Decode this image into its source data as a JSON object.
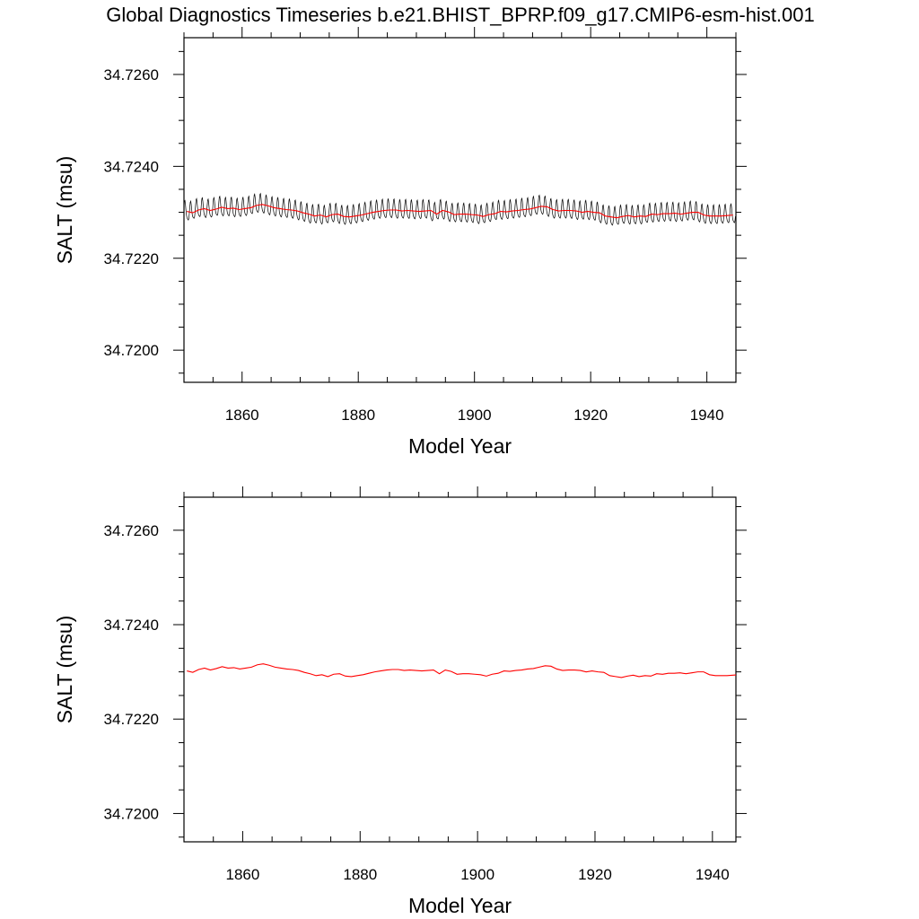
{
  "title": "Global Diagnostics Timeseries b.e21.BHIST_BPRP.f09_g17.CMIP6-esm-hist.001",
  "colors": {
    "monthly": "#000000",
    "annual": "#ff0000",
    "axes": "#000000"
  },
  "chart_data": [
    {
      "type": "line",
      "xlabel": "Model Year",
      "ylabel": "SALT (msu)",
      "xlim": [
        1850,
        1945
      ],
      "ylim": [
        34.7193,
        34.7268
      ],
      "xticks": [
        "1860",
        "1880",
        "1900",
        "1920",
        "1940"
      ],
      "yticks": [
        "34.7200",
        "34.7220",
        "34.7240",
        "34.7260"
      ],
      "grid": false,
      "series": [
        {
          "kind": "monthly",
          "x_start": 1850,
          "x_end": 1945,
          "seasonal_amplitude": 0.0002,
          "values": [
            34.72302,
            34.72299,
            34.72305,
            34.72308,
            34.72304,
            34.72307,
            34.72311,
            34.72308,
            34.72309,
            34.72306,
            34.72308,
            34.7231,
            34.72315,
            34.72317,
            34.72314,
            34.7231,
            34.72308,
            34.72306,
            34.72305,
            34.72303,
            34.72299,
            34.72296,
            34.72292,
            34.72294,
            34.7229,
            34.72295,
            34.72296,
            34.72291,
            34.7229,
            34.72292,
            34.72294,
            34.72297,
            34.723,
            34.72302,
            34.72304,
            34.72305,
            34.72305,
            34.72303,
            34.72304,
            34.72303,
            34.72302,
            34.72303,
            34.72304,
            34.72296,
            34.72304,
            34.72301,
            34.72295,
            34.72296,
            34.72296,
            34.72295,
            34.72294,
            34.72291,
            34.72295,
            34.72297,
            34.72302,
            34.72301,
            34.72303,
            34.72304,
            34.72306,
            34.72307,
            34.7231,
            34.72313,
            34.72312,
            34.72306,
            34.72303,
            34.72304,
            34.72304,
            34.72303,
            34.723,
            34.72302,
            34.723,
            34.72299,
            34.72292,
            34.7229,
            34.72288,
            34.72291,
            34.72293,
            34.7229,
            34.72292,
            34.72291,
            34.72296,
            34.72295,
            34.72297,
            34.72297,
            34.72298,
            34.72296,
            34.72298,
            34.723,
            34.723,
            34.72294,
            34.72292,
            34.72292,
            34.72292,
            34.72293,
            34.72294
          ]
        },
        {
          "kind": "annual",
          "x": [
            1850,
            1851,
            1852,
            1853,
            1854,
            1855,
            1856,
            1857,
            1858,
            1859,
            1860,
            1861,
            1862,
            1863,
            1864,
            1865,
            1866,
            1867,
            1868,
            1869,
            1870,
            1871,
            1872,
            1873,
            1874,
            1875,
            1876,
            1877,
            1878,
            1879,
            1880,
            1881,
            1882,
            1883,
            1884,
            1885,
            1886,
            1887,
            1888,
            1889,
            1890,
            1891,
            1892,
            1893,
            1894,
            1895,
            1896,
            1897,
            1898,
            1899,
            1900,
            1901,
            1902,
            1903,
            1904,
            1905,
            1906,
            1907,
            1908,
            1909,
            1910,
            1911,
            1912,
            1913,
            1914,
            1915,
            1916,
            1917,
            1918,
            1919,
            1920,
            1921,
            1922,
            1923,
            1924,
            1925,
            1926,
            1927,
            1928,
            1929,
            1930,
            1931,
            1932,
            1933,
            1934,
            1935,
            1936,
            1937,
            1938,
            1939,
            1940,
            1941,
            1942,
            1943,
            1944
          ],
          "values": [
            34.72302,
            34.72299,
            34.72305,
            34.72308,
            34.72304,
            34.72307,
            34.72311,
            34.72308,
            34.72309,
            34.72306,
            34.72308,
            34.7231,
            34.72315,
            34.72317,
            34.72314,
            34.7231,
            34.72308,
            34.72306,
            34.72305,
            34.72303,
            34.72299,
            34.72296,
            34.72292,
            34.72294,
            34.7229,
            34.72295,
            34.72296,
            34.72291,
            34.7229,
            34.72292,
            34.72294,
            34.72297,
            34.723,
            34.72302,
            34.72304,
            34.72305,
            34.72305,
            34.72303,
            34.72304,
            34.72303,
            34.72302,
            34.72303,
            34.72304,
            34.72296,
            34.72304,
            34.72301,
            34.72295,
            34.72296,
            34.72296,
            34.72295,
            34.72294,
            34.72291,
            34.72295,
            34.72297,
            34.72302,
            34.72301,
            34.72303,
            34.72304,
            34.72306,
            34.72307,
            34.7231,
            34.72313,
            34.72312,
            34.72306,
            34.72303,
            34.72304,
            34.72304,
            34.72303,
            34.723,
            34.72302,
            34.723,
            34.72299,
            34.72292,
            34.7229,
            34.72288,
            34.72291,
            34.72293,
            34.7229,
            34.72292,
            34.72291,
            34.72296,
            34.72295,
            34.72297,
            34.72297,
            34.72298,
            34.72296,
            34.72298,
            34.723,
            34.723,
            34.72294,
            34.72292,
            34.72292,
            34.72292,
            34.72293,
            34.72294
          ]
        }
      ]
    },
    {
      "type": "line",
      "xlabel": "Model Year",
      "ylabel": "SALT (msu)",
      "xlim": [
        1850,
        1944
      ],
      "ylim": [
        34.7194,
        34.7267
      ],
      "xticks": [
        "1860",
        "1880",
        "1900",
        "1920",
        "1940"
      ],
      "yticks": [
        "34.7200",
        "34.7220",
        "34.7240",
        "34.7260"
      ],
      "grid": false,
      "series": [
        {
          "kind": "annual",
          "x": [
            1850,
            1851,
            1852,
            1853,
            1854,
            1855,
            1856,
            1857,
            1858,
            1859,
            1860,
            1861,
            1862,
            1863,
            1864,
            1865,
            1866,
            1867,
            1868,
            1869,
            1870,
            1871,
            1872,
            1873,
            1874,
            1875,
            1876,
            1877,
            1878,
            1879,
            1880,
            1881,
            1882,
            1883,
            1884,
            1885,
            1886,
            1887,
            1888,
            1889,
            1890,
            1891,
            1892,
            1893,
            1894,
            1895,
            1896,
            1897,
            1898,
            1899,
            1900,
            1901,
            1902,
            1903,
            1904,
            1905,
            1906,
            1907,
            1908,
            1909,
            1910,
            1911,
            1912,
            1913,
            1914,
            1915,
            1916,
            1917,
            1918,
            1919,
            1920,
            1921,
            1922,
            1923,
            1924,
            1925,
            1926,
            1927,
            1928,
            1929,
            1930,
            1931,
            1932,
            1933,
            1934,
            1935,
            1936,
            1937,
            1938,
            1939,
            1940,
            1941,
            1942,
            1943,
            1944
          ],
          "values": [
            34.72302,
            34.72299,
            34.72305,
            34.72308,
            34.72304,
            34.72307,
            34.72311,
            34.72308,
            34.72309,
            34.72306,
            34.72308,
            34.7231,
            34.72315,
            34.72317,
            34.72314,
            34.7231,
            34.72308,
            34.72306,
            34.72305,
            34.72303,
            34.72299,
            34.72296,
            34.72292,
            34.72294,
            34.7229,
            34.72295,
            34.72296,
            34.72291,
            34.7229,
            34.72292,
            34.72294,
            34.72297,
            34.723,
            34.72302,
            34.72304,
            34.72305,
            34.72305,
            34.72303,
            34.72304,
            34.72303,
            34.72302,
            34.72303,
            34.72304,
            34.72296,
            34.72304,
            34.72301,
            34.72295,
            34.72296,
            34.72296,
            34.72295,
            34.72294,
            34.72291,
            34.72295,
            34.72297,
            34.72302,
            34.72301,
            34.72303,
            34.72304,
            34.72306,
            34.72307,
            34.7231,
            34.72313,
            34.72312,
            34.72306,
            34.72303,
            34.72304,
            34.72304,
            34.72303,
            34.723,
            34.72302,
            34.723,
            34.72299,
            34.72292,
            34.7229,
            34.72288,
            34.72291,
            34.72293,
            34.7229,
            34.72292,
            34.72291,
            34.72296,
            34.72295,
            34.72297,
            34.72297,
            34.72298,
            34.72296,
            34.72298,
            34.723,
            34.723,
            34.72294,
            34.72292,
            34.72292,
            34.72292,
            34.72293,
            34.72294
          ]
        }
      ]
    }
  ]
}
